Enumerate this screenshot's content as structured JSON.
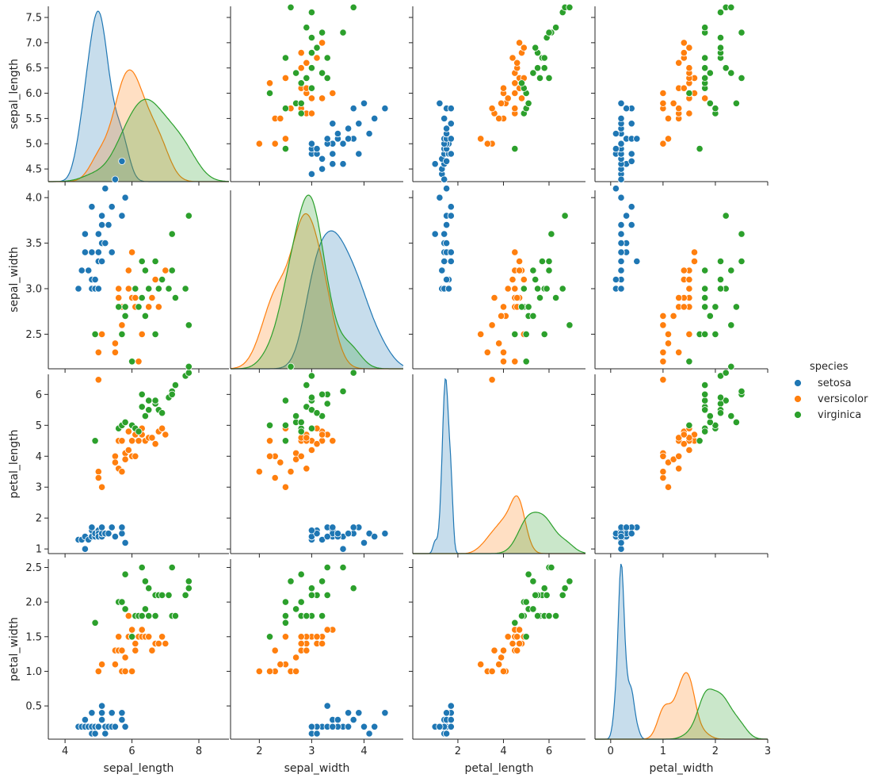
{
  "legend": {
    "title": "species",
    "entries": [
      {
        "name": "setosa",
        "color": "#1f77b4"
      },
      {
        "name": "versicolor",
        "color": "#ff7f0e"
      },
      {
        "name": "virginica",
        "color": "#2ca02c"
      }
    ]
  },
  "chart_data": {
    "type": "scatter",
    "variant": "pairplot-scatter-matrix-with-kde-diagonal",
    "variables": [
      "sepal_length",
      "sepal_width",
      "petal_length",
      "petal_width"
    ],
    "axes": {
      "sepal_length": {
        "label": "sepal_length",
        "range": [
          3.5,
          8.9
        ],
        "ticks_x": [
          4,
          6,
          8
        ],
        "ticks_y": [
          4.5,
          5.0,
          5.5,
          6.0,
          6.5,
          7.0,
          7.5
        ],
        "tick_labels_y": [
          "4.5",
          "5.0",
          "5.5",
          "6.0",
          "6.5",
          "7.0",
          "7.5"
        ],
        "range_y": [
          4.25,
          7.72
        ]
      },
      "sepal_width": {
        "label": "sepal_width",
        "range": [
          1.45,
          4.75
        ],
        "ticks_x": [
          2,
          3,
          4
        ],
        "ticks_y": [
          2.5,
          3.0,
          3.5,
          4.0
        ],
        "tick_labels_y": [
          "2.5",
          "3.0",
          "3.5",
          "4.0"
        ],
        "range_y": [
          2.12,
          4.08
        ]
      },
      "petal_length": {
        "label": "petal_length",
        "range": [
          0.02,
          7.6
        ],
        "ticks_x": [
          2,
          4,
          6
        ],
        "ticks_y": [
          1,
          2,
          3,
          4,
          5,
          6
        ],
        "tick_labels_y": [
          "1",
          "2",
          "3",
          "4",
          "5",
          "6"
        ],
        "range_y": [
          0.85,
          6.65
        ]
      },
      "petal_width": {
        "label": "petal_width",
        "range": [
          -0.3,
          3.0
        ],
        "ticks_x": [
          0,
          1,
          2,
          3
        ],
        "ticks_y": [
          0.5,
          1.0,
          1.5,
          2.0,
          2.5
        ],
        "tick_labels_y": [
          "0.5",
          "1.0",
          "1.5",
          "2.0",
          "2.5"
        ],
        "range_y": [
          0.02,
          2.62
        ]
      }
    },
    "series": [
      {
        "name": "setosa",
        "color": "#1f77b4",
        "points": [
          [
            4.4,
            3.0,
            1.3,
            0.2
          ],
          [
            4.5,
            3.2,
            1.3,
            0.2
          ],
          [
            4.6,
            3.4,
            1.4,
            0.3
          ],
          [
            4.6,
            3.6,
            1.0,
            0.2
          ],
          [
            4.7,
            3.2,
            1.3,
            0.2
          ],
          [
            4.8,
            3.0,
            1.4,
            0.1
          ],
          [
            4.8,
            3.4,
            1.6,
            0.2
          ],
          [
            4.8,
            3.1,
            1.6,
            0.2
          ],
          [
            4.8,
            3.9,
            1.7,
            0.4
          ],
          [
            4.9,
            3.0,
            1.4,
            0.2
          ],
          [
            4.9,
            3.1,
            1.5,
            0.1
          ],
          [
            5.0,
            3.6,
            1.4,
            0.2
          ],
          [
            5.0,
            3.0,
            1.6,
            0.2
          ],
          [
            5.0,
            3.4,
            1.5,
            0.2
          ],
          [
            5.0,
            3.3,
            1.4,
            0.2
          ],
          [
            5.1,
            3.5,
            1.4,
            0.3
          ],
          [
            5.1,
            3.8,
            1.5,
            0.3
          ],
          [
            5.1,
            3.7,
            1.5,
            0.4
          ],
          [
            5.1,
            3.3,
            1.7,
            0.5
          ],
          [
            5.2,
            3.5,
            1.5,
            0.2
          ],
          [
            5.2,
            4.1,
            1.5,
            0.1
          ],
          [
            5.3,
            3.7,
            1.5,
            0.2
          ],
          [
            5.4,
            3.9,
            1.7,
            0.4
          ],
          [
            5.4,
            3.4,
            1.7,
            0.2
          ],
          [
            5.5,
            4.2,
            1.4,
            0.2
          ],
          [
            5.7,
            4.4,
            1.5,
            0.4
          ],
          [
            5.7,
            3.8,
            1.7,
            0.3
          ],
          [
            5.8,
            4.0,
            1.2,
            0.2
          ]
        ]
      },
      {
        "name": "versicolor",
        "color": "#ff7f0e",
        "points": [
          [
            5.0,
            2.0,
            3.5,
            1.0
          ],
          [
            5.0,
            2.3,
            3.3,
            1.0
          ],
          [
            5.1,
            2.5,
            3.0,
            1.1
          ],
          [
            5.5,
            2.3,
            4.0,
            1.3
          ],
          [
            5.5,
            2.4,
            3.8,
            1.1
          ],
          [
            5.6,
            2.9,
            3.6,
            1.3
          ],
          [
            5.6,
            3.0,
            4.5,
            1.5
          ],
          [
            5.7,
            2.8,
            4.5,
            1.3
          ],
          [
            5.7,
            2.6,
            3.5,
            1.0
          ],
          [
            5.8,
            2.7,
            4.1,
            1.0
          ],
          [
            5.8,
            2.7,
            3.9,
            1.2
          ],
          [
            5.9,
            3.0,
            4.2,
            1.5
          ],
          [
            5.9,
            3.2,
            4.8,
            1.8
          ],
          [
            6.0,
            2.2,
            4.0,
            1.0
          ],
          [
            6.0,
            2.9,
            4.5,
            1.5
          ],
          [
            6.0,
            3.4,
            4.5,
            1.6
          ],
          [
            6.1,
            2.8,
            4.0,
            1.3
          ],
          [
            6.1,
            2.9,
            4.7,
            1.4
          ],
          [
            6.2,
            2.2,
            4.5,
            1.5
          ],
          [
            6.3,
            3.3,
            4.7,
            1.6
          ],
          [
            6.3,
            2.5,
            4.9,
            1.5
          ],
          [
            6.4,
            3.2,
            4.5,
            1.5
          ],
          [
            6.5,
            2.8,
            4.6,
            1.5
          ],
          [
            6.6,
            2.9,
            4.6,
            1.3
          ],
          [
            6.7,
            3.1,
            4.4,
            1.4
          ],
          [
            6.8,
            2.8,
            4.8,
            1.4
          ],
          [
            6.9,
            3.1,
            4.9,
            1.5
          ],
          [
            7.0,
            3.2,
            4.7,
            1.4
          ]
        ]
      },
      {
        "name": "virginica",
        "color": "#2ca02c",
        "points": [
          [
            4.9,
            2.5,
            4.5,
            1.7
          ],
          [
            5.6,
            2.8,
            4.9,
            2.0
          ],
          [
            5.7,
            2.5,
            5.0,
            2.0
          ],
          [
            5.8,
            2.7,
            5.1,
            1.9
          ],
          [
            5.8,
            2.8,
            5.1,
            2.4
          ],
          [
            6.0,
            2.2,
            5.0,
            1.5
          ],
          [
            6.1,
            3.0,
            4.9,
            1.8
          ],
          [
            6.2,
            2.8,
            4.8,
            1.8
          ],
          [
            6.3,
            3.3,
            6.0,
            2.5
          ],
          [
            6.3,
            2.9,
            5.6,
            1.8
          ],
          [
            6.4,
            2.7,
            5.3,
            1.9
          ],
          [
            6.4,
            3.2,
            5.3,
            2.3
          ],
          [
            6.5,
            3.0,
            5.8,
            2.2
          ],
          [
            6.5,
            3.0,
            5.5,
            1.8
          ],
          [
            6.7,
            3.3,
            5.7,
            2.1
          ],
          [
            6.7,
            2.5,
            5.8,
            1.8
          ],
          [
            6.8,
            3.0,
            5.5,
            2.1
          ],
          [
            6.9,
            3.1,
            5.4,
            2.1
          ],
          [
            7.1,
            3.0,
            5.9,
            2.1
          ],
          [
            7.2,
            3.6,
            6.1,
            2.5
          ],
          [
            7.2,
            3.2,
            6.0,
            1.8
          ],
          [
            7.3,
            2.9,
            6.3,
            1.8
          ],
          [
            7.6,
            3.0,
            6.6,
            2.1
          ],
          [
            7.7,
            3.8,
            6.7,
            2.2
          ],
          [
            7.7,
            2.6,
            6.9,
            2.3
          ]
        ]
      }
    ],
    "diagonal": "kde",
    "legend_position": "right",
    "grid": false
  }
}
